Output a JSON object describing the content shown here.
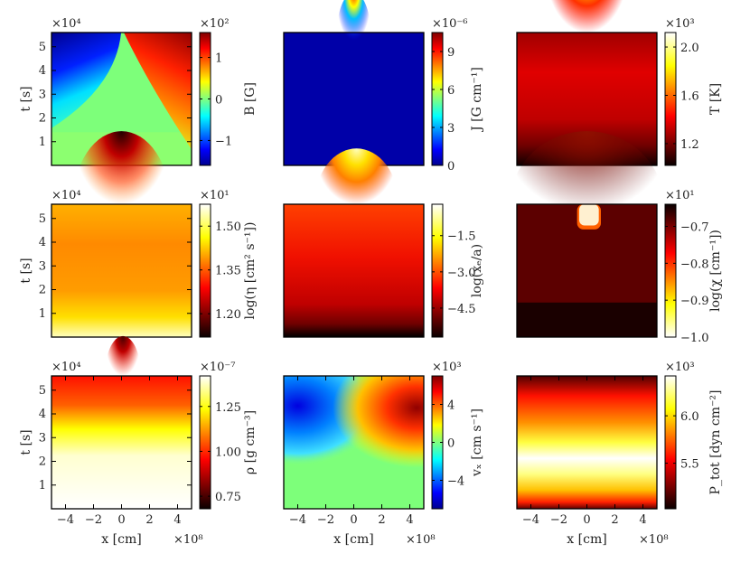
{
  "chart_data": [
    {
      "type": "heatmap",
      "name": "B",
      "colormap": "jet",
      "cbar_label": "B [G]",
      "cbar_multiplier": "×10²",
      "cbar_ticks": [
        -1,
        0,
        1
      ],
      "cbar_range": [
        -1.6,
        1.6
      ],
      "ylabel": "t [s]",
      "y_multiplier": "×10⁴",
      "yticks": [
        1,
        2,
        3,
        4,
        5
      ],
      "ylim": [
        0,
        5.6
      ],
      "xlim": [
        -5,
        5
      ]
    },
    {
      "type": "heatmap",
      "name": "J",
      "colormap": "jet",
      "cbar_label": "J [G cm⁻¹]",
      "cbar_multiplier": "×10⁻⁶",
      "cbar_ticks": [
        0,
        3,
        6,
        9
      ],
      "cbar_range": [
        0,
        10.5
      ],
      "xlim": [
        -5,
        5
      ],
      "ylim": [
        0,
        5.6
      ]
    },
    {
      "type": "heatmap",
      "name": "T",
      "colormap": "hot",
      "cbar_label": "T [K]",
      "cbar_multiplier": "×10³",
      "cbar_ticks": [
        1.2,
        1.6,
        2.0
      ],
      "cbar_tick_labels": [
        "1.2",
        "1.6",
        "2.0"
      ],
      "cbar_range": [
        1.02,
        2.12
      ],
      "xlim": [
        -5,
        5
      ],
      "ylim": [
        0,
        5.6
      ]
    },
    {
      "type": "heatmap",
      "name": "eta",
      "colormap": "hot",
      "cbar_label": "log(η [cm² s⁻¹])",
      "cbar_multiplier": "×10¹",
      "cbar_ticks": [
        1.2,
        1.35,
        1.5
      ],
      "cbar_tick_labels": [
        "1.20",
        "1.35",
        "1.50"
      ],
      "cbar_range": [
        1.12,
        1.575
      ],
      "ylabel": "t [s]",
      "y_multiplier": "×10⁴",
      "yticks": [
        1,
        2,
        3,
        4,
        5
      ],
      "ylim": [
        0,
        5.6
      ],
      "xlim": [
        -5,
        5
      ]
    },
    {
      "type": "heatmap",
      "name": "xe",
      "colormap": "hot",
      "cbar_label": "log(xₑ/a)",
      "cbar_multiplier": "",
      "cbar_ticks": [
        -4.5,
        -3.0,
        -1.5
      ],
      "cbar_tick_labels": [
        "−4.5",
        "−3.0",
        "−1.5"
      ],
      "cbar_range": [
        -5.7,
        -0.2
      ],
      "xlim": [
        -5,
        5
      ],
      "ylim": [
        0,
        5.6
      ]
    },
    {
      "type": "heatmap",
      "name": "chi",
      "colormap": "hot_r",
      "cbar_label": "log(χ [cm⁻¹])",
      "cbar_multiplier": "×10¹",
      "cbar_ticks": [
        -1.0,
        -0.9,
        -0.8,
        -0.7
      ],
      "cbar_tick_labels": [
        "−1.0",
        "−0.9",
        "−0.8",
        "−0.7"
      ],
      "cbar_range": [
        -1.0,
        -0.64
      ],
      "xlim": [
        -5,
        5
      ],
      "ylim": [
        0,
        5.6
      ]
    },
    {
      "type": "heatmap",
      "name": "rho",
      "colormap": "hot",
      "cbar_label": "ρ [g cm⁻³]",
      "cbar_multiplier": "×10⁻⁷",
      "cbar_ticks": [
        0.75,
        1.0,
        1.25
      ],
      "cbar_tick_labels": [
        "0.75",
        "1.00",
        "1.25"
      ],
      "cbar_range": [
        0.68,
        1.42
      ],
      "ylabel": "t [s]",
      "y_multiplier": "×10⁴",
      "yticks": [
        1,
        2,
        3,
        4,
        5
      ],
      "ylim": [
        0,
        5.6
      ],
      "xlabel": "x [cm]",
      "x_multiplier": "×10⁸",
      "xticks": [
        -4,
        -2,
        0,
        2,
        4
      ],
      "xlim": [
        -5,
        5
      ]
    },
    {
      "type": "heatmap",
      "name": "vx",
      "colormap": "jet",
      "cbar_label": "vₓ [cm s⁻¹]",
      "cbar_multiplier": "×10³",
      "cbar_ticks": [
        -4,
        0,
        4
      ],
      "cbar_range": [
        -7,
        7
      ],
      "xlabel": "x [cm]",
      "x_multiplier": "×10⁸",
      "xticks": [
        -4,
        -2,
        0,
        2,
        4
      ],
      "xlim": [
        -5,
        5
      ],
      "ylim": [
        0,
        5.6
      ]
    },
    {
      "type": "heatmap",
      "name": "Ptot",
      "colormap": "hot",
      "cbar_label": "P_tot [dyn cm⁻²]",
      "cbar_multiplier": "×10³",
      "cbar_ticks": [
        5.5,
        6.0
      ],
      "cbar_tick_labels": [
        "5.5",
        "6.0"
      ],
      "cbar_range": [
        5.02,
        6.42
      ],
      "xlabel": "x [cm]",
      "x_multiplier": "×10⁸",
      "xticks": [
        -4,
        -2,
        0,
        2,
        4
      ],
      "xlim": [
        -5,
        5
      ],
      "ylim": [
        0,
        5.6
      ]
    }
  ]
}
